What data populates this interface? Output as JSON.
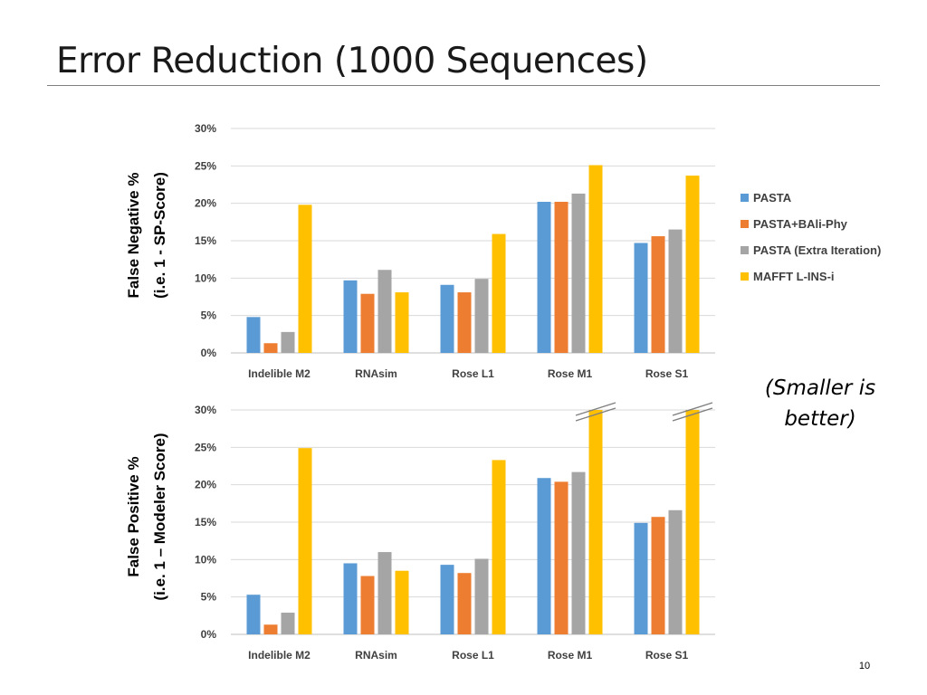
{
  "slide": {
    "title": "Error Reduction (1000 Sequences)",
    "note": "(Smaller is better)",
    "page_number": "10"
  },
  "colors": {
    "PASTA": "#5b9bd5",
    "PASTA+BAli-Phy": "#ed7d31",
    "PASTA (Extra Iteration)": "#a5a5a5",
    "MAFFT L-INS-i": "#ffc000",
    "gridline": "#d9d9d9",
    "axis": "#bfbfbf"
  },
  "chart_data": [
    {
      "type": "bar",
      "ylabel_lines": [
        "False Negative %",
        "(i.e. 1 - SP-Score)"
      ],
      "categories": [
        "Indelible M2",
        "RNAsim",
        "Rose L1",
        "Rose M1",
        "Rose S1"
      ],
      "yticks": [
        "0%",
        "5%",
        "10%",
        "15%",
        "20%",
        "25%",
        "30%"
      ],
      "ylim": [
        0,
        30
      ],
      "grid": true,
      "legend_position": "right",
      "series": [
        {
          "name": "PASTA",
          "values": [
            4.8,
            9.7,
            9.1,
            20.2,
            14.7
          ]
        },
        {
          "name": "PASTA+BAli-Phy",
          "values": [
            1.3,
            7.9,
            8.1,
            20.2,
            15.6
          ]
        },
        {
          "name": "PASTA (Extra Iteration)",
          "values": [
            2.8,
            11.1,
            9.9,
            21.3,
            16.5
          ]
        },
        {
          "name": "MAFFT L-INS-i",
          "values": [
            19.8,
            8.1,
            15.9,
            25.1,
            23.7
          ]
        }
      ],
      "truncated_bars": []
    },
    {
      "type": "bar",
      "ylabel_lines": [
        "False Positive %",
        "(i.e. 1 – Modeler Score)"
      ],
      "categories": [
        "Indelible M2",
        "RNAsim",
        "Rose L1",
        "Rose M1",
        "Rose S1"
      ],
      "yticks": [
        "0%",
        "5%",
        "10%",
        "15%",
        "20%",
        "25%",
        "30%"
      ],
      "ylim": [
        0,
        30
      ],
      "grid": true,
      "legend_position": "none",
      "series": [
        {
          "name": "PASTA",
          "values": [
            5.3,
            9.5,
            9.3,
            20.9,
            14.9
          ]
        },
        {
          "name": "PASTA+BAli-Phy",
          "values": [
            1.3,
            7.8,
            8.2,
            20.4,
            15.7
          ]
        },
        {
          "name": "PASTA (Extra Iteration)",
          "values": [
            2.9,
            11.0,
            10.1,
            21.7,
            16.6
          ]
        },
        {
          "name": "MAFFT L-INS-i",
          "values": [
            24.9,
            8.5,
            23.3,
            30,
            30
          ]
        }
      ],
      "truncated_bars": [
        {
          "category": "Rose M1",
          "series": "MAFFT L-INS-i"
        },
        {
          "category": "Rose S1",
          "series": "MAFFT L-INS-i"
        }
      ]
    }
  ]
}
